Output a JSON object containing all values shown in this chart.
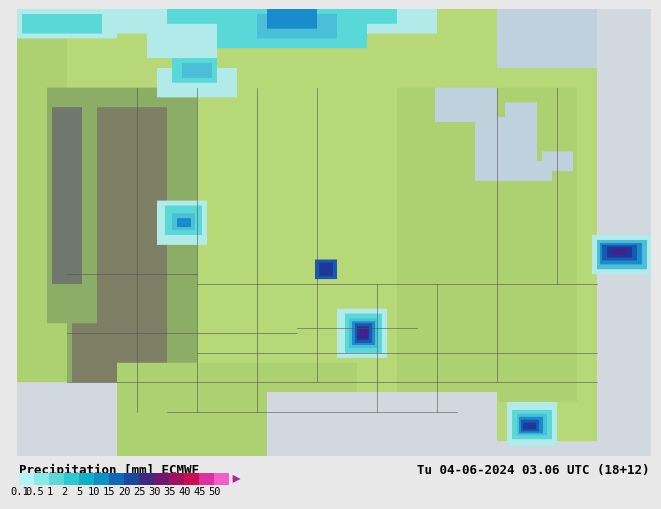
{
  "title_left": "Precipitation [mm] ECMWF",
  "title_right": "Tu 04-06-2024 03.06 UTC (18+12)",
  "colorbar_labels": [
    "0.1",
    "0.5",
    "1",
    "2",
    "5",
    "10",
    "15",
    "20",
    "25",
    "30",
    "35",
    "40",
    "45",
    "50"
  ],
  "colorbar_colors": [
    "#b3f5f5",
    "#8ae8e8",
    "#5cd8d8",
    "#30c8d0",
    "#10b0c8",
    "#1090c8",
    "#1068b8",
    "#1848a0",
    "#402880",
    "#701870",
    "#a01060",
    "#c81050",
    "#e030a0",
    "#f060c8"
  ],
  "arrow_color": "#b020a0",
  "label_fontsize": 9,
  "tick_fontsize": 7.5,
  "bg_color": "#e8e8e8",
  "land_color_base": "#b8d878",
  "land_color_mtn": "#8aaa58",
  "ocean_color": "#d0d8e0",
  "terrain_dark": "#707868"
}
